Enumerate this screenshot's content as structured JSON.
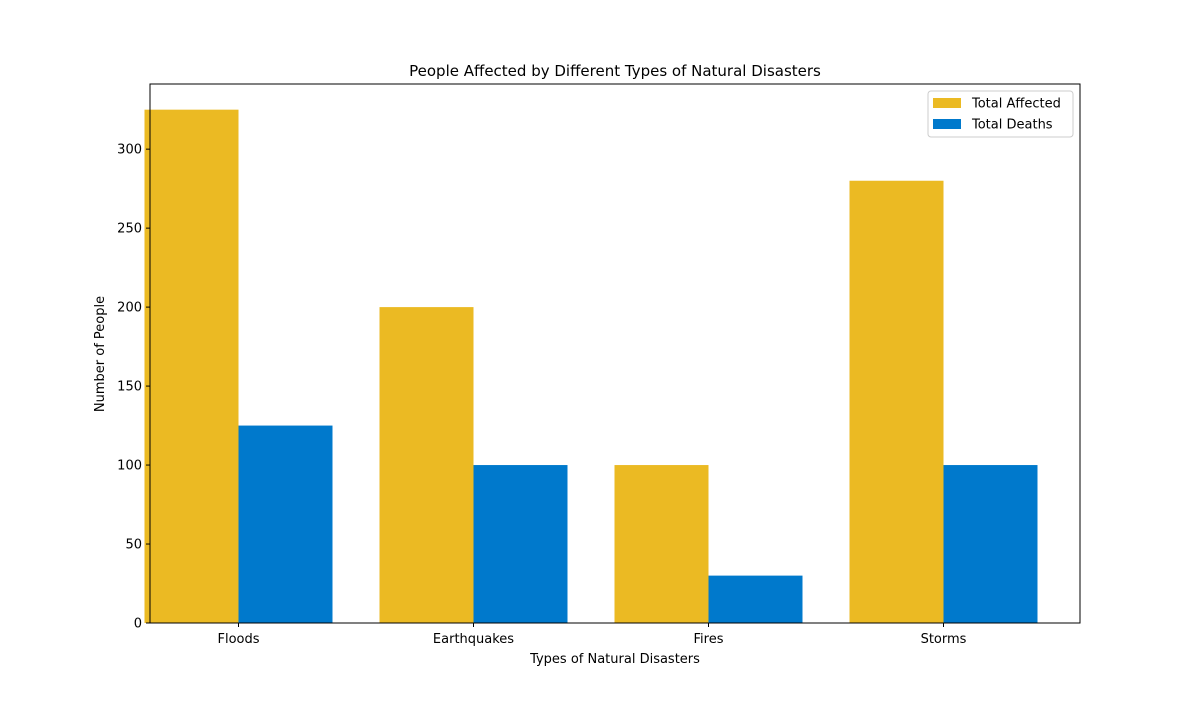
{
  "chart_data": {
    "type": "bar",
    "title": "People Affected by Different Types of Natural Disasters",
    "xlabel": "Types of Natural Disasters",
    "ylabel": "Number of People",
    "categories": [
      "Floods",
      "Earthquakes",
      "Fires",
      "Storms"
    ],
    "series": [
      {
        "name": "Total Affected",
        "values": [
          325,
          200,
          100,
          280
        ],
        "color": "#ebba23"
      },
      {
        "name": "Total Deaths",
        "values": [
          125,
          100,
          30,
          100
        ],
        "color": "#0079cc"
      }
    ],
    "ylim": [
      0,
      341.25
    ],
    "yticks": [
      0,
      50,
      100,
      150,
      200,
      250,
      300
    ],
    "legend_position": "top-right",
    "grid": false
  }
}
